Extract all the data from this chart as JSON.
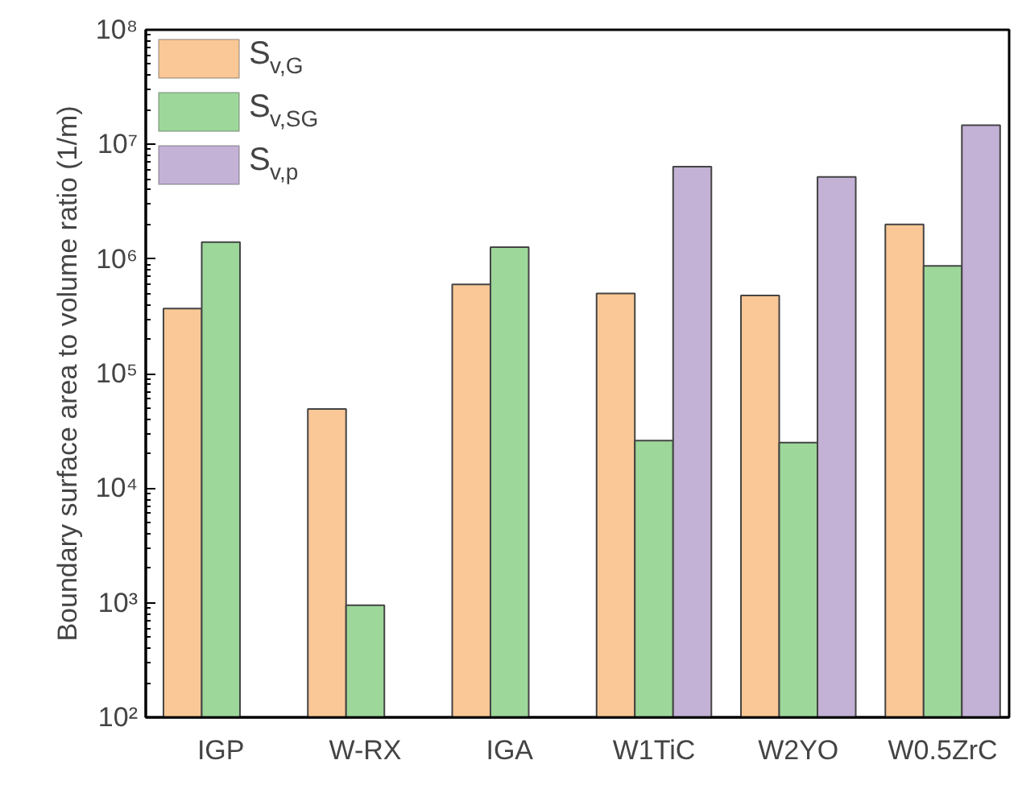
{
  "chart_data": {
    "type": "bar",
    "ylabel": "Boundary surface area to volume ratio (1/m)",
    "categories": [
      "IGP",
      "W-RX",
      "IGA",
      "W1TiC",
      "W2YO",
      "W0.5ZrC"
    ],
    "series": [
      {
        "name": "S$_{v,G}$",
        "color": "#fac896",
        "values": [
          370000,
          49000,
          600000,
          500000,
          480000,
          2000000
        ]
      },
      {
        "name": "S$_{v,SG}$",
        "color": "#9dd89a",
        "values": [
          1400000,
          950,
          1270000,
          26000,
          25000,
          870000
        ]
      },
      {
        "name": "S$_{v,p}$",
        "color": "#c3b1d6",
        "values": [
          null,
          null,
          null,
          6400000,
          5200000,
          14700000
        ]
      }
    ],
    "log": true,
    "ylim": [
      100,
      100000000
    ],
    "yticks": [
      {
        "value": 100,
        "label": "10²"
      },
      {
        "value": 1000,
        "label": "10³"
      },
      {
        "value": 10000,
        "label": "10⁴"
      },
      {
        "value": 100000,
        "label": "10⁵"
      },
      {
        "value": 1000000,
        "label": "10⁶"
      },
      {
        "value": 10000000,
        "label": "10⁷"
      },
      {
        "value": 100000000,
        "label": "10⁸"
      }
    ],
    "grid": false,
    "legend": "top left"
  }
}
